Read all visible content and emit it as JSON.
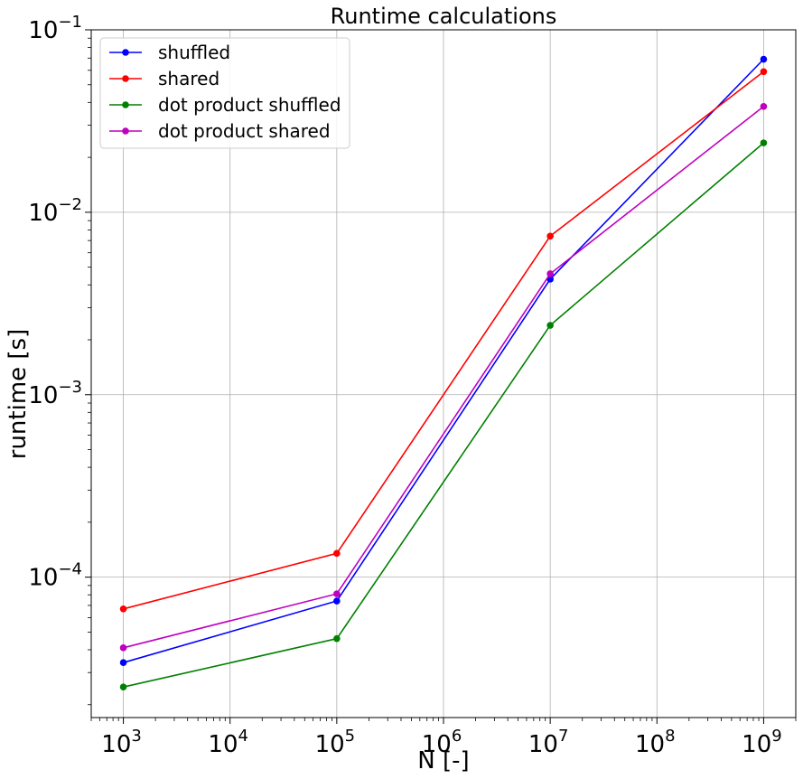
{
  "chart_data": {
    "type": "line",
    "title": "Runtime calculations",
    "xlabel": "N [-]",
    "ylabel": "runtime [s]",
    "xscale": "log",
    "yscale": "log",
    "xlim": [
      500,
      2000000000
    ],
    "ylim": [
      1.7e-05,
      0.1
    ],
    "grid": true,
    "legend_position": "top-left",
    "x_ticks": [
      {
        "base": "10",
        "exp": "3",
        "value": 1000
      },
      {
        "base": "10",
        "exp": "4",
        "value": 10000
      },
      {
        "base": "10",
        "exp": "5",
        "value": 100000
      },
      {
        "base": "10",
        "exp": "6",
        "value": 1000000
      },
      {
        "base": "10",
        "exp": "7",
        "value": 10000000
      },
      {
        "base": "10",
        "exp": "8",
        "value": 100000000
      },
      {
        "base": "10",
        "exp": "9",
        "value": 1000000000
      }
    ],
    "y_ticks": [
      {
        "base": "10",
        "exp": "−4",
        "value": 0.0001
      },
      {
        "base": "10",
        "exp": "−3",
        "value": 0.001
      },
      {
        "base": "10",
        "exp": "−2",
        "value": 0.01
      },
      {
        "base": "10",
        "exp": "−1",
        "value": 0.1
      }
    ],
    "x": [
      1000,
      100000,
      10000000,
      1000000000
    ],
    "series": [
      {
        "name": "shuffled",
        "color": "#0000ff",
        "values": [
          3.4e-05,
          7.4e-05,
          0.0043,
          0.069
        ]
      },
      {
        "name": "shared",
        "color": "#ff0000",
        "values": [
          6.7e-05,
          0.000135,
          0.0074,
          0.059
        ]
      },
      {
        "name": "dot product shuffled",
        "color": "#008000",
        "values": [
          2.5e-05,
          4.6e-05,
          0.0024,
          0.024
        ]
      },
      {
        "name": "dot product shared",
        "color": "#bf00bf",
        "values": [
          4.1e-05,
          8.1e-05,
          0.0046,
          0.038
        ]
      }
    ]
  }
}
